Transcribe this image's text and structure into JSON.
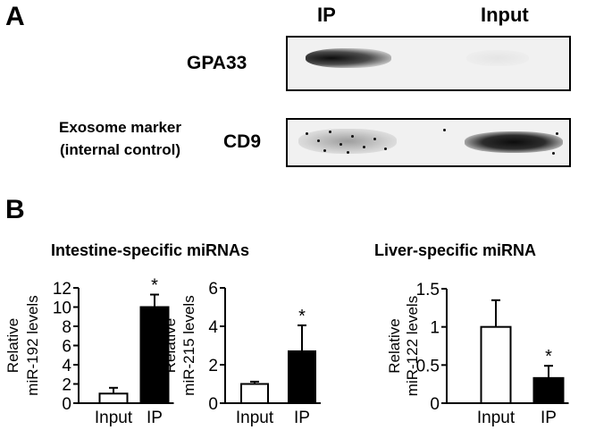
{
  "figure": {
    "panel_a_label": "A",
    "panel_b_label": "B",
    "lanes": [
      "IP",
      "Input"
    ],
    "blots": [
      {
        "label": "GPA33",
        "side_label": []
      },
      {
        "label": "CD9",
        "side_label": [
          "Exosome marker",
          "(internal control)"
        ]
      }
    ],
    "groups": [
      {
        "title": "Intestine-specific miRNAs"
      },
      {
        "title": "Liver-specific miRNA"
      }
    ]
  },
  "colors": {
    "input_bar": "#ffffff",
    "ip_bar": "#000000"
  },
  "chart_data": [
    {
      "type": "bar",
      "categories": [
        "Input",
        "IP"
      ],
      "values": [
        1.0,
        10.0
      ],
      "errors": [
        0.6,
        1.3
      ],
      "significance": [
        "",
        "*"
      ],
      "ylabel_lines": [
        "Relative",
        "miR-192 levels"
      ],
      "ylim": [
        0,
        12
      ],
      "yticks": [
        0,
        2,
        4,
        6,
        8,
        10,
        12
      ]
    },
    {
      "type": "bar",
      "categories": [
        "Input",
        "IP"
      ],
      "values": [
        1.0,
        2.7
      ],
      "errors": [
        0.12,
        1.35
      ],
      "significance": [
        "",
        "*"
      ],
      "ylabel_lines": [
        "Relative",
        "miR-215 levels"
      ],
      "ylim": [
        0,
        6
      ],
      "yticks": [
        0,
        2,
        4,
        6
      ]
    },
    {
      "type": "bar",
      "categories": [
        "Input",
        "IP"
      ],
      "values": [
        1.0,
        0.33
      ],
      "errors": [
        0.35,
        0.16
      ],
      "significance": [
        "",
        "*"
      ],
      "ylabel_lines": [
        "Relative",
        "miR-122 levels"
      ],
      "ylim": [
        0,
        1.5
      ],
      "yticks": [
        0,
        0.5,
        1,
        1.5
      ],
      "ytick_labels": [
        "0",
        "0.5",
        "1",
        "1.5"
      ]
    }
  ]
}
